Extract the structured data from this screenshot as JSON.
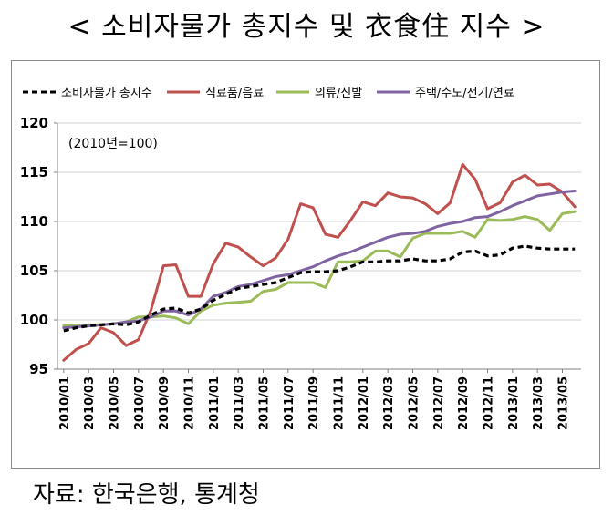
{
  "title": "< 소비자물가 총지수 및 衣食住 지수 >",
  "source": "자료: 한국은행, 통계청",
  "chart_data": {
    "type": "line",
    "title": "< 소비자물가 총지수 및 衣食住 지수 >",
    "annotation": "(2010년=100)",
    "xlabel": "",
    "ylabel": "",
    "ylim": [
      95,
      120
    ],
    "yticks": [
      95,
      100,
      105,
      110,
      115,
      120
    ],
    "grid": "horizontal",
    "legend_position": "top",
    "x": [
      "2010/01",
      "2010/02",
      "2010/03",
      "2010/04",
      "2010/05",
      "2010/06",
      "2010/07",
      "2010/08",
      "2010/09",
      "2010/10",
      "2010/11",
      "2010/12",
      "2011/01",
      "2011/02",
      "2011/03",
      "2011/04",
      "2011/05",
      "2011/06",
      "2011/07",
      "2011/08",
      "2011/09",
      "2011/10",
      "2011/11",
      "2011/12",
      "2012/01",
      "2012/02",
      "2012/03",
      "2012/04",
      "2012/05",
      "2012/06",
      "2012/07",
      "2012/08",
      "2012/09",
      "2012/10",
      "2012/11",
      "2012/12",
      "2013/01",
      "2013/02",
      "2013/03",
      "2013/04",
      "2013/05",
      "2013/06"
    ],
    "xtick_labels": [
      "2010/01",
      "2010/03",
      "2010/05",
      "2010/07",
      "2010/09",
      "2010/11",
      "2011/01",
      "2011/03",
      "2011/05",
      "2011/07",
      "2011/09",
      "2011/11",
      "2012/01",
      "2012/03",
      "2012/05",
      "2012/07",
      "2012/09",
      "2012/11",
      "2013/01",
      "2013/03",
      "2013/05"
    ],
    "series": [
      {
        "name": "소비자물가 총지수",
        "color": "#000000",
        "style": "dashed",
        "values": [
          98.9,
          99.2,
          99.4,
          99.5,
          99.6,
          99.5,
          99.8,
          100.5,
          101.1,
          101.2,
          100.7,
          101.1,
          102.0,
          102.6,
          103.2,
          103.4,
          103.6,
          103.8,
          104.3,
          104.8,
          104.9,
          104.9,
          105.0,
          105.4,
          105.9,
          105.9,
          106.0,
          106.0,
          106.2,
          106.0,
          106.0,
          106.2,
          106.9,
          107.0,
          106.5,
          106.6,
          107.3,
          107.5,
          107.3,
          107.2,
          107.2,
          107.2
        ]
      },
      {
        "name": "식료품/음료",
        "color": "#c0504d",
        "style": "solid",
        "values": [
          95.9,
          97.0,
          97.6,
          99.2,
          98.7,
          97.4,
          98.0,
          101.0,
          105.5,
          105.6,
          102.4,
          102.4,
          105.7,
          107.8,
          107.4,
          106.4,
          105.5,
          106.3,
          108.2,
          111.8,
          111.4,
          108.7,
          108.4,
          110.1,
          112.0,
          111.6,
          112.9,
          112.5,
          112.4,
          111.8,
          110.8,
          111.9,
          115.8,
          114.3,
          111.3,
          111.9,
          114.0,
          114.7,
          113.7,
          113.8,
          113.0,
          111.5
        ]
      },
      {
        "name": "의류/신발",
        "color": "#9bbb59",
        "style": "solid",
        "values": [
          99.4,
          99.4,
          99.5,
          99.5,
          99.6,
          99.8,
          100.3,
          100.3,
          100.4,
          100.2,
          99.6,
          100.9,
          101.5,
          101.7,
          101.8,
          101.9,
          102.9,
          103.1,
          103.8,
          103.8,
          103.8,
          103.3,
          105.9,
          105.9,
          106.0,
          107.0,
          107.0,
          106.4,
          108.3,
          108.8,
          108.8,
          108.8,
          109.0,
          108.4,
          110.2,
          110.1,
          110.2,
          110.5,
          110.2,
          109.1,
          110.8,
          111.0
        ]
      },
      {
        "name": "주택/수도/전기/연료",
        "color": "#8064a2",
        "style": "solid",
        "values": [
          99.2,
          99.3,
          99.4,
          99.5,
          99.6,
          99.8,
          99.9,
          100.3,
          100.9,
          100.9,
          100.5,
          101.1,
          102.4,
          102.8,
          103.4,
          103.6,
          104.0,
          104.4,
          104.6,
          105.0,
          105.4,
          106.0,
          106.5,
          106.9,
          107.4,
          107.9,
          108.4,
          108.7,
          108.8,
          109.0,
          109.5,
          109.8,
          110.0,
          110.4,
          110.5,
          111.0,
          111.6,
          112.1,
          112.6,
          112.8,
          113.0,
          113.1
        ]
      }
    ]
  }
}
